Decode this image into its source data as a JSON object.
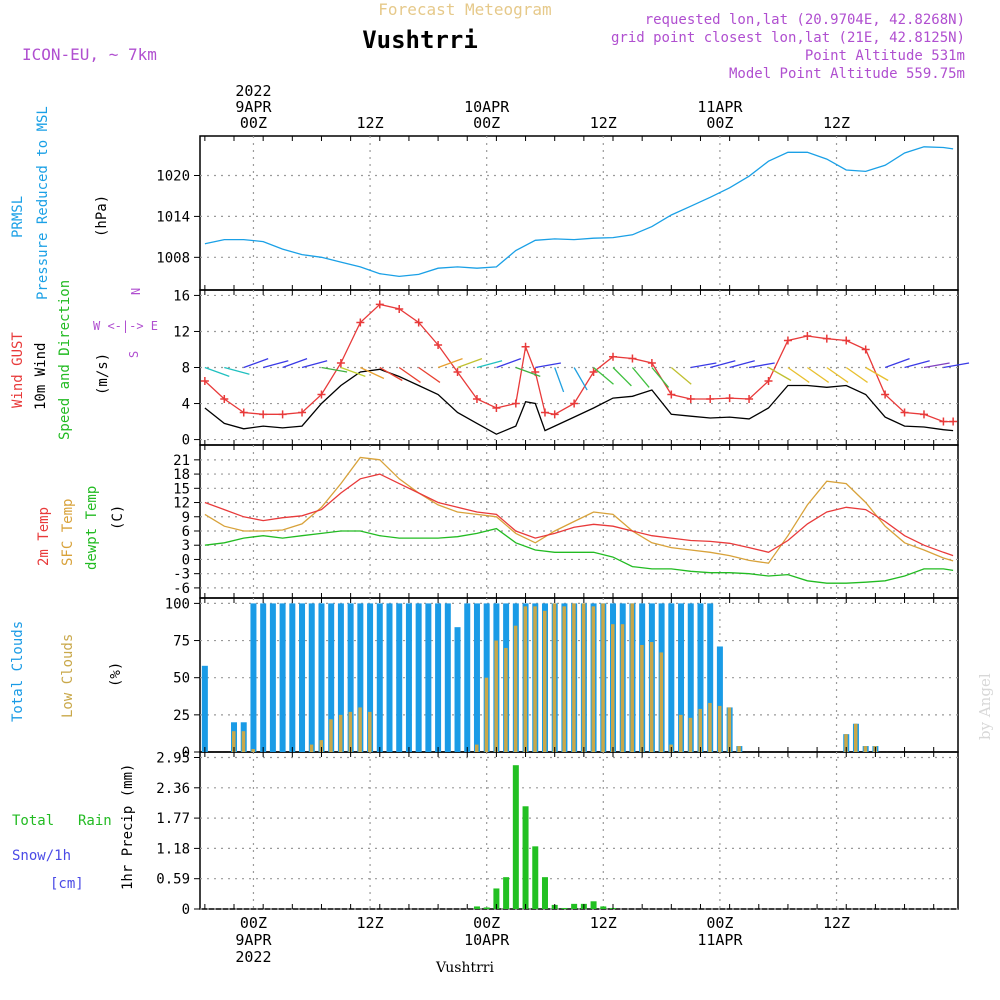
{
  "header": {
    "subtitle": "Forecast Meteogram",
    "title": "Vushtrri",
    "model": "ICON-EU, ~ 7km",
    "meta": [
      "requested lon,lat (20.9704E, 42.8268N)",
      "grid point closest lon,lat (21E, 42.8125N)",
      "Point Altitude 531m",
      "Model Point Altitude 559.75m"
    ]
  },
  "time_axis": {
    "top_labels": [
      {
        "t": 0,
        "lines": [
          "2022",
          "9APR",
          "00Z"
        ]
      },
      {
        "t": 12,
        "lines": [
          "12Z"
        ]
      },
      {
        "t": 24,
        "lines": [
          "10APR",
          "00Z"
        ]
      },
      {
        "t": 36,
        "lines": [
          "12Z"
        ]
      },
      {
        "t": 48,
        "lines": [
          "11APR",
          "00Z"
        ]
      },
      {
        "t": 60,
        "lines": [
          "12Z"
        ]
      }
    ],
    "bottom_labels": [
      {
        "t": 0,
        "lines": [
          "00Z",
          "9APR",
          "2022"
        ]
      },
      {
        "t": 12,
        "lines": [
          "12Z"
        ]
      },
      {
        "t": 24,
        "lines": [
          "00Z",
          "10APR"
        ]
      },
      {
        "t": 36,
        "lines": [
          "12Z"
        ]
      },
      {
        "t": 48,
        "lines": [
          "00Z",
          "11APR"
        ]
      },
      {
        "t": 60,
        "lines": [
          "12Z"
        ]
      }
    ]
  },
  "footer": {
    "location": "Vushtrri",
    "watermark": "by Angel"
  },
  "colors": {
    "pressure": "#1aa0e6",
    "gust": "#e83a3a",
    "wind": "#000000",
    "t2m": "#e83a3a",
    "sfc": "#d8a23a",
    "dewpt": "#22bb22",
    "total_clouds": "#1a9be6",
    "low_clouds": "#c9a84a",
    "rain": "#22c022",
    "snow": "#4a4ae6",
    "purple": "#b04fd0"
  },
  "panels": {
    "pressure": {
      "labels": [
        "PRMSL",
        "Pressure Reduced to MSL",
        "(hPa)"
      ]
    },
    "wind": {
      "labels": [
        "Wind GUST",
        "10m Wind",
        "Speed and Direction",
        "(m/s)"
      ],
      "compass": [
        "N",
        "W <-|-> E",
        "S"
      ]
    },
    "temp": {
      "labels": [
        "2m Temp",
        "SFC Temp",
        "dewpt Temp",
        "(C)"
      ]
    },
    "clouds": {
      "labels": [
        "Total Clouds",
        "Low Clouds",
        "(%)"
      ]
    },
    "precip": {
      "labels": [
        "Total",
        "Rain",
        "Snow/1h",
        "[cm]",
        "1hr Precip (mm)"
      ]
    }
  },
  "chart_data": [
    {
      "type": "line",
      "name": "pressure",
      "ylim": [
        1004,
        1025
      ],
      "yticks": [
        1008,
        1014,
        1020
      ],
      "x": [
        -5,
        -3,
        -1,
        1,
        3,
        5,
        7,
        9,
        11,
        13,
        15,
        17,
        19,
        21,
        23,
        25,
        27,
        29,
        31,
        33,
        35,
        37,
        39,
        41,
        43,
        45,
        47,
        49,
        51,
        53,
        55,
        57,
        59,
        61,
        63,
        65,
        67,
        69,
        71,
        72
      ],
      "series": [
        {
          "values": [
            1010,
            1010.6,
            1010.6,
            1010.3,
            1009.2,
            1008.4,
            1008,
            1007.3,
            1006.6,
            1005.6,
            1005.2,
            1005.5,
            1006.4,
            1006.6,
            1006.4,
            1006.6,
            1009,
            1010.5,
            1010.7,
            1010.6,
            1010.8,
            1010.9,
            1011.3,
            1012.5,
            1014.2,
            1015.5,
            1016.8,
            1018.2,
            1019.9,
            1022.1,
            1023.4,
            1023.4,
            1022.4,
            1020.8,
            1020.6,
            1021.5,
            1023.3,
            1024.2,
            1024.1,
            1023.9
          ]
        }
      ]
    },
    {
      "type": "line",
      "name": "wind",
      "ylim": [
        0,
        16
      ],
      "yticks": [
        0,
        4,
        8,
        12,
        16
      ],
      "x": [
        -5,
        -3,
        -1,
        1,
        3,
        5,
        7,
        9,
        11,
        13,
        15,
        17,
        19,
        21,
        23,
        25,
        27,
        28,
        29,
        30,
        31,
        33,
        35,
        37,
        39,
        41,
        43,
        45,
        47,
        49,
        51,
        53,
        55,
        57,
        59,
        61,
        63,
        65,
        67,
        69,
        71,
        72
      ],
      "series": [
        {
          "values": [
            6.5,
            4.5,
            3,
            2.8,
            2.8,
            3,
            5,
            8.5,
            13,
            15,
            14.5,
            13,
            10.5,
            7.5,
            4.5,
            3.5,
            4,
            10.3,
            7.5,
            3,
            2.8,
            4,
            7.5,
            9.2,
            9,
            8.5,
            5,
            4.5,
            4.5,
            4.6,
            4.5,
            6.5,
            11,
            11.5,
            11.2,
            11,
            10,
            5,
            3,
            2.8,
            2,
            2
          ]
        },
        {
          "values": [
            3.5,
            1.8,
            1.2,
            1.5,
            1.3,
            1.5,
            4,
            6,
            7.5,
            7.8,
            7,
            6,
            5,
            3,
            1.8,
            0.6,
            1.5,
            4.2,
            4,
            1,
            1.5,
            2.5,
            3.5,
            4.6,
            4.8,
            5.5,
            2.8,
            2.6,
            2.4,
            2.5,
            2.3,
            3.5,
            6,
            6,
            5.8,
            6,
            5,
            2.5,
            1.5,
            1.4,
            1.1,
            1
          ]
        }
      ]
    },
    {
      "type": "line",
      "name": "temperature",
      "ylim": [
        -7,
        23
      ],
      "yticks": [
        -6,
        -3,
        0,
        3,
        6,
        9,
        12,
        15,
        18,
        21
      ],
      "x": [
        -5,
        -3,
        -1,
        1,
        3,
        5,
        7,
        9,
        11,
        13,
        15,
        17,
        19,
        21,
        23,
        25,
        27,
        29,
        31,
        33,
        35,
        37,
        39,
        41,
        43,
        45,
        47,
        49,
        51,
        53,
        55,
        57,
        59,
        61,
        63,
        65,
        67,
        69,
        71,
        72
      ],
      "series": [
        {
          "values": [
            12,
            10.5,
            9,
            8.2,
            8.8,
            9.2,
            10.5,
            14,
            17,
            18,
            16,
            14,
            12,
            11,
            10,
            9.5,
            6,
            4.5,
            5.5,
            6.8,
            7.4,
            7,
            6,
            5,
            4.5,
            4,
            3.8,
            3.4,
            2.5,
            1.5,
            4,
            7.5,
            10,
            11,
            10.5,
            8,
            5,
            3,
            1.5,
            0.8
          ]
        },
        {
          "values": [
            9.5,
            7,
            6,
            6,
            6.2,
            7.5,
            11,
            16,
            21.5,
            21,
            17,
            14,
            11.5,
            10,
            9.5,
            9,
            5.5,
            3.5,
            6,
            8,
            10,
            9.5,
            6,
            3.5,
            2.5,
            2,
            1.5,
            0.8,
            -0.2,
            -0.8,
            5,
            11.5,
            16.5,
            16,
            12,
            7,
            3.5,
            2,
            0.3,
            -0.3
          ]
        },
        {
          "values": [
            3,
            3.5,
            4.5,
            5,
            4.5,
            5,
            5.5,
            6,
            6,
            5,
            4.5,
            4.5,
            4.5,
            4.8,
            5.5,
            6.5,
            3.5,
            2,
            1.5,
            1.5,
            1.5,
            0.5,
            -1.5,
            -2,
            -2,
            -2.5,
            -2.8,
            -2.8,
            -3,
            -3.5,
            -3.2,
            -4.5,
            -5,
            -5,
            -4.8,
            -4.5,
            -3.5,
            -2,
            -2,
            -2.3
          ]
        }
      ]
    },
    {
      "type": "bar",
      "name": "clouds",
      "ylim": [
        0,
        100
      ],
      "yticks": [
        0,
        25,
        50,
        75,
        100
      ],
      "x0": -5,
      "series": [
        {
          "values": [
            58,
            0,
            0,
            20,
            20,
            100,
            100,
            100,
            100,
            100,
            100,
            100,
            100,
            100,
            100,
            100,
            100,
            100,
            100,
            100,
            100,
            100,
            100,
            100,
            100,
            100,
            84,
            100,
            100,
            100,
            100,
            100,
            100,
            100,
            100,
            100,
            100,
            100,
            100,
            100,
            100,
            100,
            100,
            100,
            100,
            100,
            100,
            100,
            100,
            100,
            100,
            100,
            100,
            71,
            30,
            4,
            0,
            0,
            0,
            0,
            0,
            0,
            0,
            0,
            0,
            0,
            12,
            19,
            4,
            4,
            0,
            0,
            0,
            0,
            0,
            0,
            0,
            0
          ]
        },
        {
          "values": [
            0,
            0,
            0,
            14,
            14,
            2,
            0,
            0,
            0,
            0,
            0,
            5,
            8,
            22,
            25,
            27,
            30,
            27,
            0,
            0,
            0,
            0,
            0,
            0,
            0,
            0,
            0,
            0,
            5,
            50,
            75,
            70,
            85,
            98,
            98,
            95,
            100,
            98,
            100,
            100,
            98,
            100,
            86,
            86,
            100,
            72,
            74,
            67,
            5,
            25,
            23,
            29,
            33,
            31,
            30,
            4,
            0,
            0,
            0,
            0,
            0,
            0,
            0,
            0,
            0,
            0,
            12,
            19,
            4,
            4,
            0,
            0,
            0,
            0,
            0,
            0,
            0,
            0
          ]
        }
      ]
    },
    {
      "type": "bar",
      "name": "precipitation",
      "ylim": [
        0,
        2.95
      ],
      "yticks": [
        0,
        0.59,
        1.18,
        1.77,
        2.36,
        2.95
      ],
      "x": [
        23,
        24,
        25,
        26,
        27,
        28,
        29,
        30,
        31,
        32,
        33,
        34,
        35,
        36,
        37
      ],
      "series": [
        {
          "values": [
            0.05,
            0.03,
            0.4,
            0.62,
            2.8,
            2.0,
            1.22,
            0.62,
            0.08,
            0.02,
            0.1,
            0.1,
            0.15,
            0.05,
            0.02
          ]
        }
      ]
    }
  ]
}
